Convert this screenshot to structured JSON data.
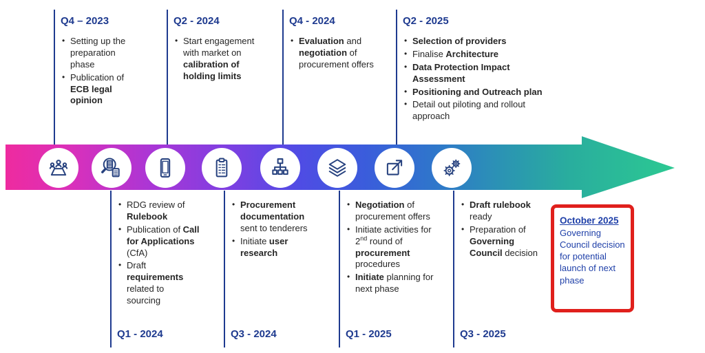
{
  "slide": {
    "top_blocks": [
      {
        "quarter": "Q4 – 2023",
        "bullets": [
          {
            "segments": [
              {
                "text": "Setting up the preparation phase",
                "bold": false
              }
            ]
          },
          {
            "segments": [
              {
                "text": "Publication of ",
                "bold": false
              },
              {
                "text": "ECB legal opinion",
                "bold": true
              }
            ]
          }
        ]
      },
      {
        "quarter": "Q2 - 2024",
        "bullets": [
          {
            "segments": [
              {
                "text": "Start engagement with market on ",
                "bold": false
              },
              {
                "text": "calibration of holding limits",
                "bold": true
              }
            ]
          }
        ]
      },
      {
        "quarter": "Q4 - 2024",
        "bullets": [
          {
            "segments": [
              {
                "text": "Evaluation",
                "bold": true
              },
              {
                "text": " and ",
                "bold": false
              },
              {
                "text": "negotiation",
                "bold": true
              },
              {
                "text": " of procurement offers",
                "bold": false
              }
            ]
          }
        ]
      },
      {
        "quarter": "Q2 - 2025",
        "bullets": [
          {
            "segments": [
              {
                "text": "Selection of providers",
                "bold": true
              }
            ]
          },
          {
            "segments": [
              {
                "text": "Finalise ",
                "bold": false
              },
              {
                "text": "Architecture",
                "bold": true
              }
            ]
          },
          {
            "segments": [
              {
                "text": "Data Protection Impact Assessment",
                "bold": true
              }
            ]
          },
          {
            "segments": [
              {
                "text": "Positioning and Outreach plan",
                "bold": true
              }
            ]
          },
          {
            "segments": [
              {
                "text": "Detail out piloting and rollout approach",
                "bold": false
              }
            ]
          }
        ]
      }
    ],
    "bottom_blocks": [
      {
        "quarter": "Q1 - 2024",
        "bullets": [
          {
            "segments": [
              {
                "text": "RDG review of ",
                "bold": false
              },
              {
                "text": "Rulebook",
                "bold": true
              }
            ]
          },
          {
            "segments": [
              {
                "text": "Publication of ",
                "bold": false
              },
              {
                "text": "Call for Applications",
                "bold": true
              },
              {
                "text": " (CfA)",
                "bold": false
              }
            ]
          },
          {
            "segments": [
              {
                "text": "Draft ",
                "bold": false
              },
              {
                "text": "requirements",
                "bold": true
              },
              {
                "text": " related to sourcing",
                "bold": false
              }
            ]
          }
        ]
      },
      {
        "quarter": "Q3 - 2024",
        "bullets": [
          {
            "segments": [
              {
                "text": "Procurement documentation",
                "bold": true
              },
              {
                "text": " sent to tenderers",
                "bold": false
              }
            ]
          },
          {
            "segments": [
              {
                "text": "Initiate ",
                "bold": false
              },
              {
                "text": "user research",
                "bold": true
              }
            ]
          }
        ]
      },
      {
        "quarter": "Q1 - 2025",
        "bullets": [
          {
            "segments": [
              {
                "text": "Negotiation",
                "bold": true
              },
              {
                "text": " of procurement offers",
                "bold": false
              }
            ]
          },
          {
            "segments": [
              {
                "text": "Initiate activities for 2",
                "bold": false
              },
              {
                "text": "nd",
                "bold": false,
                "sup": true
              },
              {
                "text": " round of ",
                "bold": false
              },
              {
                "text": "procurement",
                "bold": true
              },
              {
                "text": " procedures",
                "bold": false
              }
            ]
          },
          {
            "segments": [
              {
                "text": "Initiate",
                "bold": true
              },
              {
                "text": " planning for next phase",
                "bold": false
              }
            ]
          }
        ]
      },
      {
        "quarter": "Q3 - 2025",
        "bullets": [
          {
            "segments": [
              {
                "text": "Draft rulebook",
                "bold": true
              },
              {
                "text": " ready",
                "bold": false
              }
            ]
          },
          {
            "segments": [
              {
                "text": "Preparation of ",
                "bold": false
              },
              {
                "text": "Governing Council",
                "bold": true
              },
              {
                "text": " decision",
                "bold": false
              }
            ]
          }
        ]
      }
    ],
    "milestone_icons": [
      "meeting-icon",
      "document-review-icon",
      "smartphone-icon",
      "clipboard-icon",
      "org-chart-icon",
      "layers-icon",
      "external-link-icon",
      "gears-icon"
    ],
    "callout": {
      "title": "October 2025",
      "body": "Governing Council decision for potential launch of next phase"
    },
    "colors": {
      "heading_navy": "#1e3a8f",
      "body_text": "#262626",
      "icon_stroke": "#27427f",
      "callout_border": "#e0201c",
      "callout_text": "#1e3fa8",
      "arrow_gradient": [
        "#ee2b9f",
        "#a936d6",
        "#4f4ce4",
        "#2f76cb",
        "#29ad9e",
        "#2cc992"
      ]
    }
  }
}
